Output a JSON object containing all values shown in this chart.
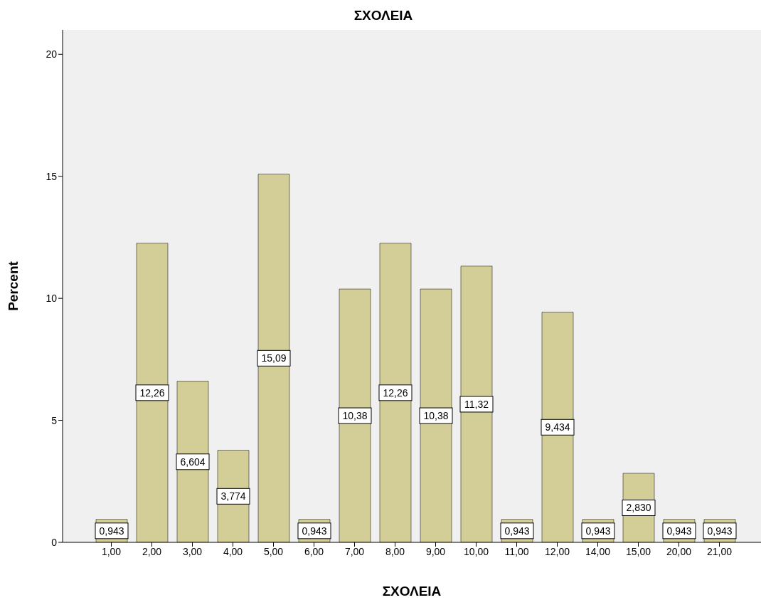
{
  "chart_data": {
    "type": "bar",
    "title": "ΣΧΟΛΕΙΑ",
    "xlabel": "ΣΧΟΛΕΙΑ",
    "ylabel": "Percent",
    "categories": [
      "1,00",
      "2,00",
      "3,00",
      "4,00",
      "5,00",
      "6,00",
      "7,00",
      "8,00",
      "9,00",
      "10,00",
      "11,00",
      "12,00",
      "14,00",
      "15,00",
      "20,00",
      "21,00"
    ],
    "values": [
      0.943,
      12.26,
      6.604,
      3.774,
      15.09,
      0.943,
      10.38,
      12.26,
      10.38,
      11.32,
      0.943,
      9.434,
      0.943,
      2.83,
      0.943,
      0.943
    ],
    "value_labels": [
      "0,943",
      "12,26",
      "6,604",
      "3,774",
      "15,09",
      "0,943",
      "10,38",
      "12,26",
      "10,38",
      "11,32",
      "0,943",
      "9,434",
      "0,943",
      "2,830",
      "0,943",
      "0,943"
    ],
    "color": "#d3ce97",
    "ylim": [
      0,
      21
    ],
    "yticks": [
      0,
      5,
      10,
      15,
      20
    ],
    "grid": false
  }
}
